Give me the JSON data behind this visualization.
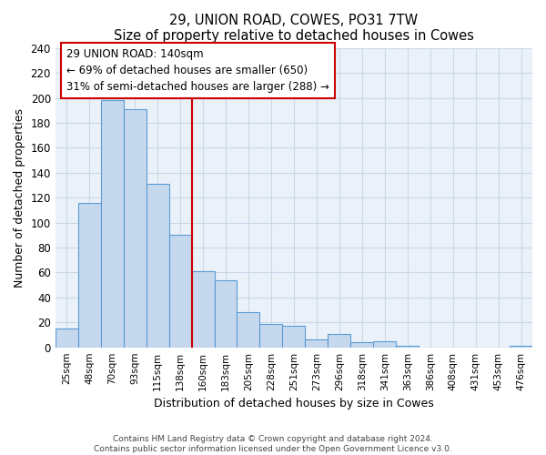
{
  "title": "29, UNION ROAD, COWES, PO31 7TW",
  "subtitle": "Size of property relative to detached houses in Cowes",
  "xlabel": "Distribution of detached houses by size in Cowes",
  "ylabel": "Number of detached properties",
  "bin_labels": [
    "25sqm",
    "48sqm",
    "70sqm",
    "93sqm",
    "115sqm",
    "138sqm",
    "160sqm",
    "183sqm",
    "205sqm",
    "228sqm",
    "251sqm",
    "273sqm",
    "296sqm",
    "318sqm",
    "341sqm",
    "363sqm",
    "386sqm",
    "408sqm",
    "431sqm",
    "453sqm",
    "476sqm"
  ],
  "bar_heights": [
    15,
    116,
    198,
    191,
    131,
    90,
    61,
    54,
    28,
    19,
    17,
    6,
    11,
    4,
    5,
    1,
    0,
    0,
    0,
    0,
    1
  ],
  "bar_color": "#c5d8ed",
  "bar_edge_color": "#5b9bd5",
  "highlight_line_color": "#cc0000",
  "annotation_line1": "29 UNION ROAD: 140sqm",
  "annotation_line2": "← 69% of detached houses are smaller (650)",
  "annotation_line3": "31% of semi-detached houses are larger (288) →",
  "annotation_box_color": "#ffffff",
  "annotation_box_edge_color": "#cc0000",
  "ylim": [
    0,
    240
  ],
  "yticks": [
    0,
    20,
    40,
    60,
    80,
    100,
    120,
    140,
    160,
    180,
    200,
    220,
    240
  ],
  "footer_text": "Contains HM Land Registry data © Crown copyright and database right 2024.\nContains public sector information licensed under the Open Government Licence v3.0.",
  "background_color": "#ffffff",
  "plot_bg_color": "#eaf1f8",
  "grid_color": "#c8d8e8"
}
